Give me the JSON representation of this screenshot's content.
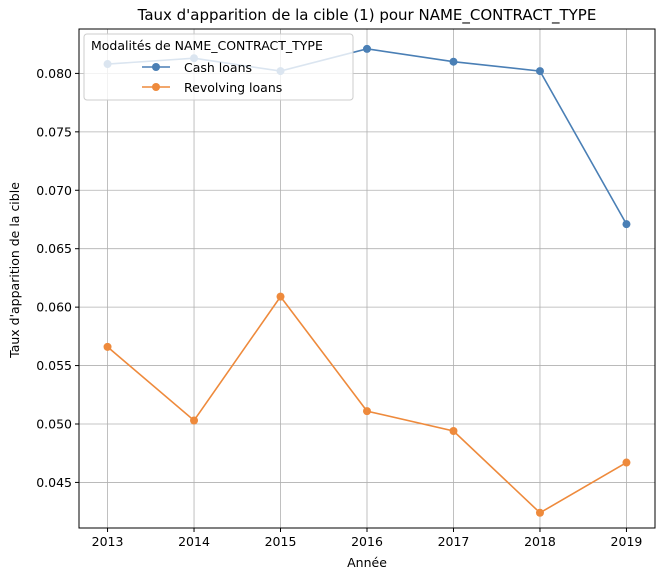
{
  "chart_data": {
    "type": "line",
    "title": "Taux d'apparition de la cible (1) pour NAME_CONTRACT_TYPE",
    "xlabel": "Année",
    "ylabel": "Taux d'apparition de la cible",
    "x": [
      2013,
      2014,
      2015,
      2016,
      2017,
      2018,
      2019
    ],
    "x_tick_labels": [
      "2013",
      "2014",
      "2015",
      "2016",
      "2017",
      "2018",
      "2019"
    ],
    "yticks": [
      0.045,
      0.05,
      0.055,
      0.06,
      0.065,
      0.07,
      0.075,
      0.08
    ],
    "y_tick_labels": [
      "0.045",
      "0.050",
      "0.055",
      "0.060",
      "0.065",
      "0.070",
      "0.075",
      "0.080"
    ],
    "ylim": [
      0.0411,
      0.0838
    ],
    "grid": true,
    "legend": {
      "title": "Modalités de NAME_CONTRACT_TYPE",
      "placement": "top-left"
    },
    "series": [
      {
        "name": "Cash loans",
        "color": "#4a7fb5",
        "values": [
          0.0808,
          0.0813,
          0.0802,
          0.0821,
          0.081,
          0.0802,
          0.0671
        ]
      },
      {
        "name": "Revolving loans",
        "color": "#ee8a3c",
        "values": [
          0.0566,
          0.0503,
          0.0609,
          0.0511,
          0.0494,
          0.0424,
          0.0467
        ]
      }
    ]
  }
}
